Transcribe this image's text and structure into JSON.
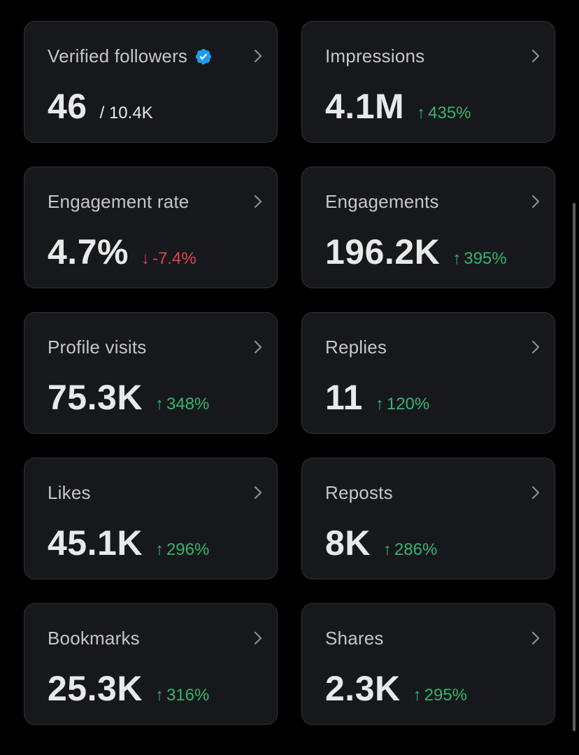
{
  "cards": [
    {
      "label": "Verified followers",
      "value": "46",
      "sub_total": "/ 10.4K",
      "verified": true
    },
    {
      "label": "Impressions",
      "value": "4.1M",
      "change": "435%",
      "direction": "up"
    },
    {
      "label": "Engagement rate",
      "value": "4.7%",
      "change": "-7.4%",
      "direction": "down"
    },
    {
      "label": "Engagements",
      "value": "196.2K",
      "change": "395%",
      "direction": "up"
    },
    {
      "label": "Profile visits",
      "value": "75.3K",
      "change": "348%",
      "direction": "up"
    },
    {
      "label": "Replies",
      "value": "11",
      "change": "120%",
      "direction": "up"
    },
    {
      "label": "Likes",
      "value": "45.1K",
      "change": "296%",
      "direction": "up"
    },
    {
      "label": "Reposts",
      "value": "8K",
      "change": "286%",
      "direction": "up"
    },
    {
      "label": "Bookmarks",
      "value": "25.3K",
      "change": "316%",
      "direction": "up"
    },
    {
      "label": "Shares",
      "value": "2.3K",
      "change": "295%",
      "direction": "up"
    }
  ],
  "icons": {
    "verified": "verified-badge-icon",
    "chevron": "chevron-right-icon",
    "up": "arrow-up-icon",
    "down": "arrow-down-icon"
  },
  "colors": {
    "background": "#000000",
    "card_background": "#16181c",
    "card_border": "#2f3336",
    "positive": "#36b36e",
    "negative": "#e0454f",
    "verified_blue": "#1d9bf0"
  }
}
